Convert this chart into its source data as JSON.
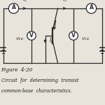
{
  "bg_color": "#e8e4dc",
  "fig_width": 1.5,
  "fig_height": 1.5,
  "dpi": 100,
  "caption_line1": "Figure  4-20",
  "caption_line2": "Circuit  for  determining  transist",
  "caption_line3": "common-base  characteristics.",
  "caption_fontsize": 5.2,
  "circuit_color": "#2a2a2a",
  "lw": 0.9,
  "ar": 0.048,
  "vr": 0.042
}
